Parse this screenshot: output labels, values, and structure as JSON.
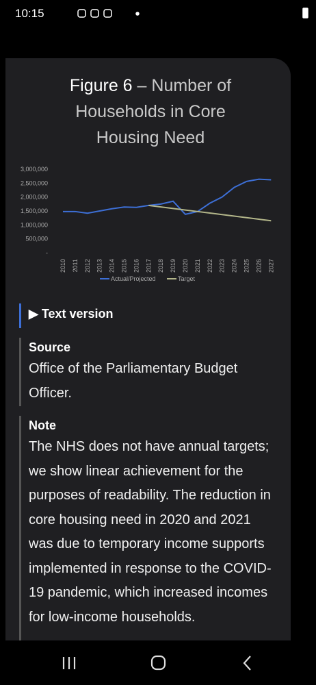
{
  "status_bar": {
    "time": "10:15"
  },
  "figure": {
    "label": "Figure 6",
    "title": "– Number of Households in Core Housing Need"
  },
  "chart_data": {
    "type": "line",
    "categories": [
      "2010",
      "2011",
      "2012",
      "2013",
      "2014",
      "2015",
      "2016",
      "2017",
      "2018",
      "2019",
      "2020",
      "2021",
      "2022",
      "2023",
      "2024",
      "2025",
      "2026",
      "2027"
    ],
    "series": [
      {
        "name": "Actual/Projected",
        "color": "#3d6fd6",
        "values": [
          1480000,
          1480000,
          1420000,
          1500000,
          1580000,
          1640000,
          1630000,
          1700000,
          1750000,
          1850000,
          1380000,
          1480000,
          1780000,
          2000000,
          2350000,
          2560000,
          2640000,
          2620000
        ]
      },
      {
        "name": "Target",
        "color": "#b3b68a",
        "values": [
          null,
          null,
          null,
          null,
          null,
          null,
          null,
          1700000,
          1645000,
          1590000,
          1535000,
          1480000,
          1425000,
          1370000,
          1315000,
          1260000,
          1205000,
          1150000
        ]
      }
    ],
    "ylim": [
      0,
      3000000
    ],
    "yticks": [
      {
        "value": 0,
        "label": "-"
      },
      {
        "value": 500000,
        "label": "500,000"
      },
      {
        "value": 1000000,
        "label": "1,000,000"
      },
      {
        "value": 1500000,
        "label": "1,500,000"
      },
      {
        "value": 2000000,
        "label": "2,000,000"
      },
      {
        "value": 2500000,
        "label": "2,500,000"
      },
      {
        "value": 3000000,
        "label": "3,000,000"
      }
    ],
    "legend": "bottom",
    "grid": false
  },
  "details": {
    "summary": "▶ Text version",
    "source": {
      "heading": "Source",
      "text": "Office of the Parliamentary Budget Officer."
    },
    "note": {
      "heading": "Note",
      "text": "The NHS does not have annual targets; we show linear achievement for the purposes of readability. The reduction in core housing need in 2020 and 2021 was due to temporary income supports implemented in response to the COVID-19 pandemic, which increased incomes for low-income households."
    }
  }
}
